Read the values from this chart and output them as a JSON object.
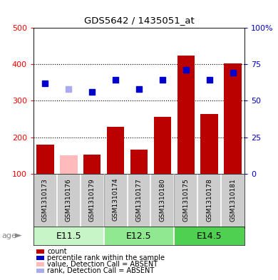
{
  "title": "GDS5642 / 1435051_at",
  "samples": [
    "GSM1310173",
    "GSM1310176",
    "GSM1310179",
    "GSM1310174",
    "GSM1310177",
    "GSM1310180",
    "GSM1310175",
    "GSM1310178",
    "GSM1310181"
  ],
  "counts": [
    180,
    150,
    152,
    228,
    165,
    255,
    425,
    263,
    402
  ],
  "ranks": [
    348,
    332,
    325,
    358,
    333,
    358,
    385,
    358,
    378
  ],
  "absent_bar": [
    false,
    true,
    false,
    false,
    false,
    false,
    false,
    false,
    false
  ],
  "absent_rank": [
    false,
    true,
    false,
    false,
    false,
    false,
    false,
    false,
    false
  ],
  "groups": [
    "E11.5",
    "E11.5",
    "E11.5",
    "E12.5",
    "E12.5",
    "E12.5",
    "E14.5",
    "E14.5",
    "E14.5"
  ],
  "group_labels": [
    "E11.5",
    "E12.5",
    "E14.5"
  ],
  "group_colors": [
    "#c8f5c8",
    "#90e890",
    "#50d050"
  ],
  "ylim_left": [
    100,
    500
  ],
  "ylim_right": [
    0,
    100
  ],
  "yticks_left": [
    100,
    200,
    300,
    400,
    500
  ],
  "yticks_right": [
    0,
    25,
    50,
    75,
    100
  ],
  "bar_color": "#bb0000",
  "bar_absent_color": "#ffbbbb",
  "dot_color": "#0000cc",
  "dot_absent_color": "#aaaaee",
  "label_bg": "#cccccc",
  "legend_items": [
    {
      "label": "count",
      "color": "#bb0000"
    },
    {
      "label": "percentile rank within the sample",
      "color": "#0000cc"
    },
    {
      "label": "value, Detection Call = ABSENT",
      "color": "#ffbbbb"
    },
    {
      "label": "rank, Detection Call = ABSENT",
      "color": "#aaaaee"
    }
  ]
}
